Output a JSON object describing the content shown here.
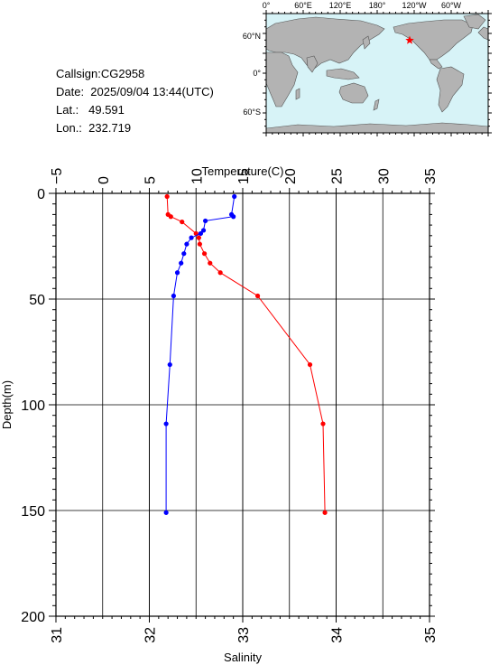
{
  "info": {
    "callsign": "Callsign:CG2958",
    "date": "Date:  2025/09/04 13:44(UTC)",
    "lat": "Lat.:   49.591",
    "lon": "Lon.:  232.719"
  },
  "map": {
    "top_labels": [
      "0°",
      "60°E",
      "120°E",
      "180°",
      "120°W",
      "60°W"
    ],
    "left_labels": [
      "60°N",
      "0°",
      "60°S"
    ],
    "station_lon": 232.719,
    "station_lat": 49.591,
    "colors": {
      "ocean": "#d7f3f7",
      "land": "#b3b3b3",
      "marker": "#ff0000"
    }
  },
  "chart_data": {
    "type": "line",
    "ylabel": "Depth(m)",
    "ylim": [
      0,
      200
    ],
    "yticks": [
      0,
      50,
      100,
      150,
      200
    ],
    "y_inverted": true,
    "top_axis": {
      "label": "Temperature(C)",
      "range": [
        -5,
        35
      ],
      "ticks": [
        -5,
        0,
        5,
        10,
        15,
        20,
        25,
        30,
        35
      ]
    },
    "bottom_axis": {
      "label": "Salinity",
      "range": [
        31,
        35
      ],
      "ticks": [
        31,
        32,
        33,
        34,
        35
      ]
    },
    "grid": true,
    "series": [
      {
        "axis": "top",
        "color": "#ff0000",
        "points": [
          {
            "x": 6.9,
            "y": 1.5
          },
          {
            "x": 7.0,
            "y": 10
          },
          {
            "x": 7.3,
            "y": 11
          },
          {
            "x": 8.5,
            "y": 13.5
          },
          {
            "x": 10.0,
            "y": 19
          },
          {
            "x": 10.3,
            "y": 21
          },
          {
            "x": 10.4,
            "y": 24
          },
          {
            "x": 10.9,
            "y": 28.5
          },
          {
            "x": 11.5,
            "y": 33
          },
          {
            "x": 12.6,
            "y": 37.5
          },
          {
            "x": 16.6,
            "y": 48.5
          },
          {
            "x": 22.2,
            "y": 81
          },
          {
            "x": 23.6,
            "y": 109
          },
          {
            "x": 23.8,
            "y": 151
          }
        ]
      },
      {
        "axis": "bottom",
        "color": "#0000ff",
        "points": [
          {
            "x": 32.91,
            "y": 1.5
          },
          {
            "x": 32.88,
            "y": 10
          },
          {
            "x": 32.9,
            "y": 11
          },
          {
            "x": 32.6,
            "y": 13
          },
          {
            "x": 32.58,
            "y": 17.5
          },
          {
            "x": 32.55,
            "y": 19
          },
          {
            "x": 32.45,
            "y": 21
          },
          {
            "x": 32.4,
            "y": 24
          },
          {
            "x": 32.37,
            "y": 28.5
          },
          {
            "x": 32.34,
            "y": 33
          },
          {
            "x": 32.3,
            "y": 37.5
          },
          {
            "x": 32.26,
            "y": 48.5
          },
          {
            "x": 32.22,
            "y": 81
          },
          {
            "x": 32.18,
            "y": 109
          },
          {
            "x": 32.18,
            "y": 151
          }
        ]
      }
    ]
  }
}
